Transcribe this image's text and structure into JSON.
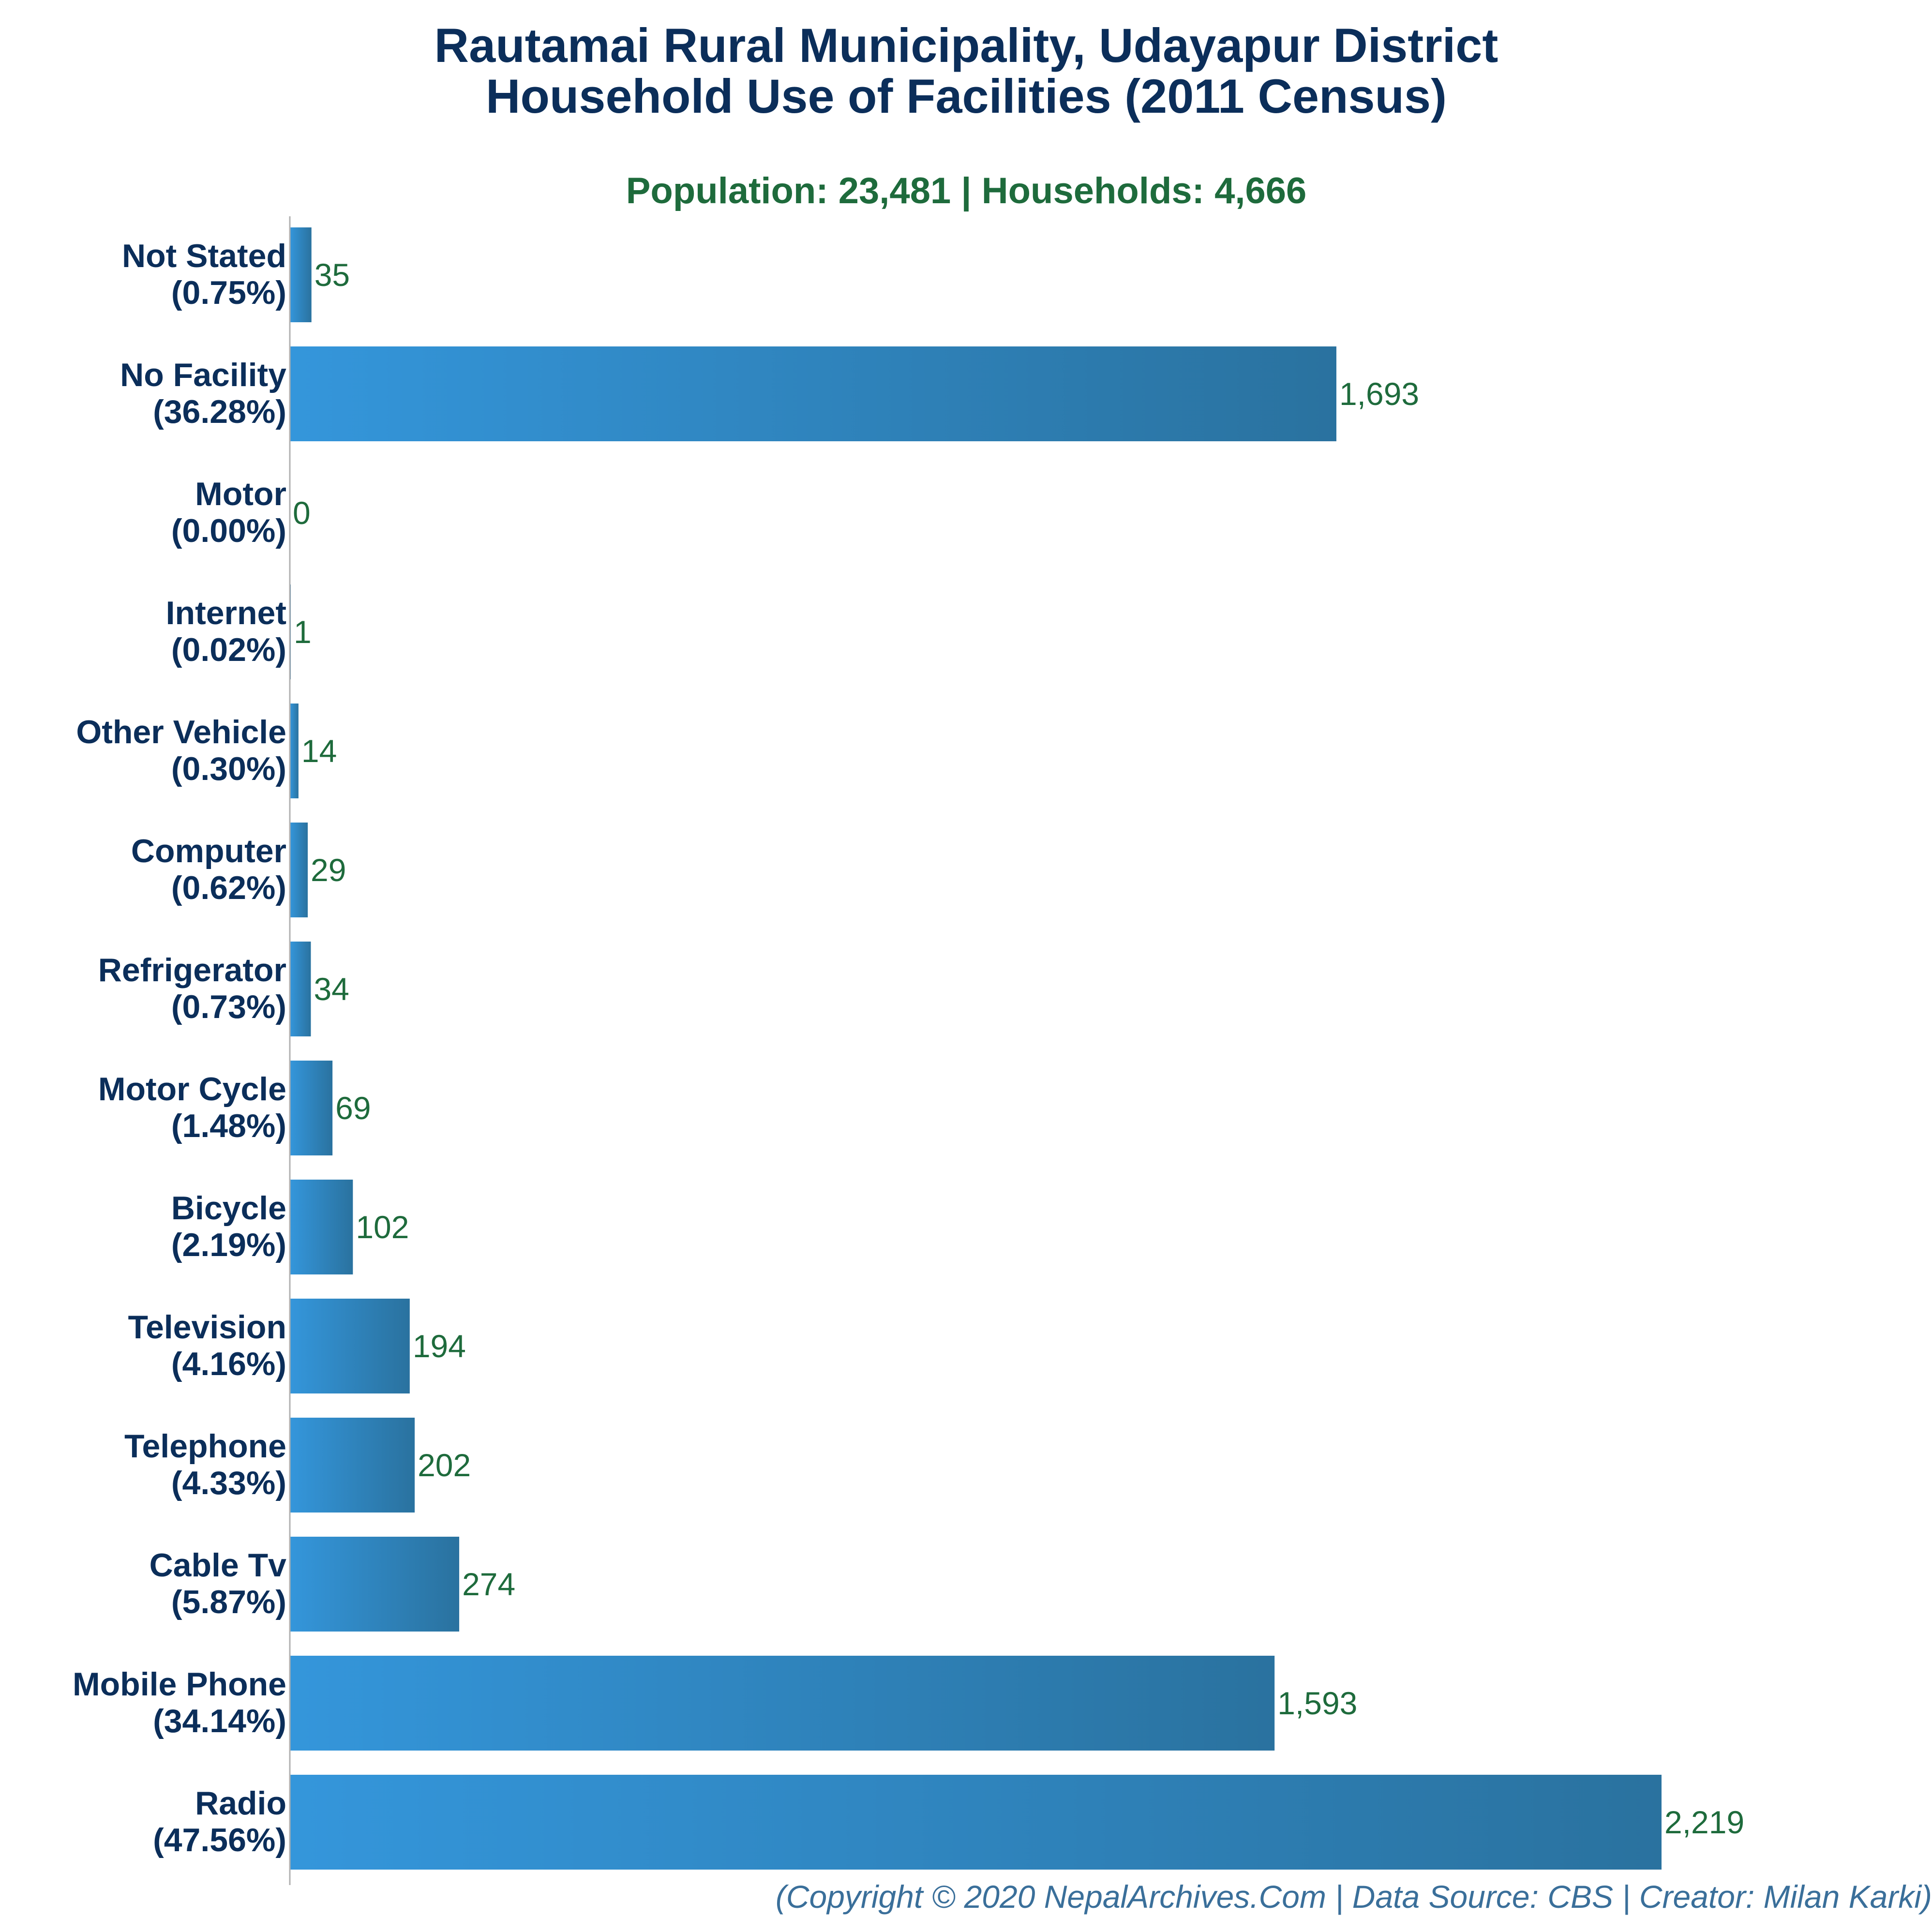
{
  "colors": {
    "title": "#0b2e5a",
    "subtitle": "#1e6b3c",
    "bar_start": "#3496db",
    "bar_end": "#2a729f",
    "value_label": "#1e6b3c",
    "footer": "#3a6f9a",
    "axis": "#b0b0b0"
  },
  "header": {
    "title_line1": "Rautamai Rural Municipality, Udayapur District",
    "title_line2": "Household Use of Facilities (2011 Census)",
    "subtitle": "Population: 23,481 | Households: 4,666"
  },
  "footer": {
    "text": "(Copyright © 2020 NepalArchives.Com | Data Source: CBS | Creator: Milan Karki)"
  },
  "chart_data": {
    "type": "bar",
    "orientation": "horizontal",
    "grid": false,
    "xlim": [
      0,
      2219
    ],
    "categories": [
      "Not Stated",
      "No Facility",
      "Motor",
      "Internet",
      "Other Vehicle",
      "Computer",
      "Refrigerator",
      "Motor Cycle",
      "Bicycle",
      "Television",
      "Telephone",
      "Cable Tv",
      "Mobile Phone",
      "Radio"
    ],
    "percent_labels": [
      "(0.75%)",
      "(36.28%)",
      "(0.00%)",
      "(0.02%)",
      "(0.30%)",
      "(0.62%)",
      "(0.73%)",
      "(1.48%)",
      "(2.19%)",
      "(4.16%)",
      "(4.33%)",
      "(5.87%)",
      "(34.14%)",
      "(47.56%)"
    ],
    "values": [
      35,
      1693,
      0,
      1,
      14,
      29,
      34,
      69,
      102,
      194,
      202,
      274,
      1593,
      2219
    ],
    "value_labels": [
      "35",
      "1,693",
      "0",
      "1",
      "14",
      "29",
      "34",
      "69",
      "102",
      "194",
      "202",
      "274",
      "1,593",
      "2,219"
    ]
  }
}
